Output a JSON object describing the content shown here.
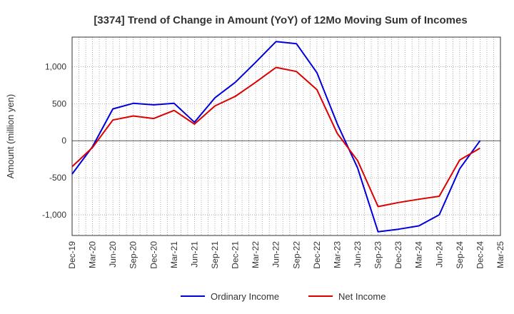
{
  "chart_data": {
    "type": "line",
    "title": "[3374]  Trend of Change in Amount (YoY) of 12Mo Moving Sum of Incomes",
    "xlabel": "",
    "ylabel": "Amount (million yen)",
    "ylim": [
      -1280,
      1400
    ],
    "yticks": [
      -1000,
      -500,
      0,
      500,
      1000
    ],
    "ytick_labels": [
      "-1,000",
      "-500",
      "0",
      "500",
      "1,000"
    ],
    "x_tick_labels": [
      "Dec-19",
      "Mar-20",
      "Jun-20",
      "Sep-20",
      "Dec-20",
      "Mar-21",
      "Jun-21",
      "Sep-21",
      "Dec-21",
      "Mar-22",
      "Jun-22",
      "Sep-22",
      "Dec-22",
      "Mar-23",
      "Jun-23",
      "Sep-23",
      "Dec-23",
      "Mar-24",
      "Jun-24",
      "Sep-24",
      "Dec-24",
      "Mar-25"
    ],
    "grid": true,
    "legend_position": "bottom",
    "series": [
      {
        "name": "Ordinary Income",
        "color": "#0000dd",
        "values": [
          -450,
          -80,
          430,
          505,
          485,
          505,
          250,
          580,
          790,
          1060,
          1340,
          1310,
          920,
          230,
          -370,
          -1230,
          -1195,
          -1150,
          -1000,
          -380,
          0
        ]
      },
      {
        "name": "Net Income",
        "color": "#dd0000",
        "values": [
          -350,
          -90,
          280,
          335,
          300,
          410,
          225,
          470,
          600,
          790,
          990,
          935,
          690,
          100,
          -270,
          -890,
          -835,
          -790,
          -750,
          -260,
          -100
        ]
      }
    ]
  }
}
